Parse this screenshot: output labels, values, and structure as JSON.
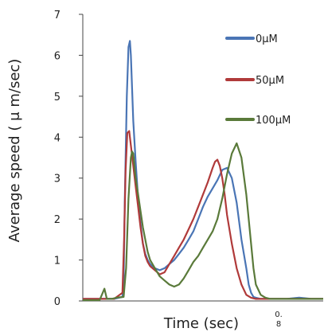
{
  "chart_data": {
    "type": "line",
    "title": "",
    "xlabel": "Time (sec)",
    "ylabel": "Average speed ( μ m/sec)",
    "ylim": [
      0,
      7
    ],
    "yticks": [
      "0",
      "1",
      "2",
      "3",
      "4",
      "5",
      "6",
      "7"
    ],
    "x_tick_note": [
      "0.",
      "8"
    ],
    "xlim": [
      0,
      1
    ],
    "grid": false,
    "legend_position": "top-right",
    "series": [
      {
        "name": "0μM",
        "color": "#4a75b5",
        "x": [
          0,
          0.07,
          0.1,
          0.13,
          0.165,
          0.17,
          0.175,
          0.183,
          0.19,
          0.196,
          0.2,
          0.205,
          0.21,
          0.22,
          0.23,
          0.24,
          0.25,
          0.26,
          0.27,
          0.28,
          0.3,
          0.32,
          0.34,
          0.36,
          0.38,
          0.4,
          0.42,
          0.44,
          0.46,
          0.48,
          0.5,
          0.52,
          0.54,
          0.56,
          0.58,
          0.6,
          0.62,
          0.64,
          0.66,
          0.68,
          0.69,
          0.7,
          0.71,
          0.72,
          0.74,
          0.76,
          0.8,
          0.85,
          0.9,
          0.95,
          1.0
        ],
        "y": [
          0.05,
          0.05,
          0.05,
          0.05,
          0.1,
          0.5,
          2.5,
          5.0,
          6.2,
          6.35,
          6.0,
          5.2,
          4.4,
          3.4,
          2.5,
          1.9,
          1.4,
          1.15,
          1.0,
          0.9,
          0.8,
          0.75,
          0.8,
          0.9,
          1.0,
          1.15,
          1.3,
          1.5,
          1.7,
          2.0,
          2.3,
          2.55,
          2.75,
          2.95,
          3.2,
          3.25,
          3.0,
          2.4,
          1.5,
          0.8,
          0.4,
          0.2,
          0.1,
          0.08,
          0.05,
          0.05,
          0.05,
          0.05,
          0.08,
          0.05,
          0.05
        ]
      },
      {
        "name": "50μM",
        "color": "#b03a3a",
        "x": [
          0,
          0.07,
          0.1,
          0.13,
          0.165,
          0.172,
          0.178,
          0.185,
          0.193,
          0.2,
          0.21,
          0.22,
          0.23,
          0.24,
          0.25,
          0.26,
          0.27,
          0.28,
          0.3,
          0.32,
          0.34,
          0.36,
          0.38,
          0.4,
          0.42,
          0.44,
          0.46,
          0.48,
          0.5,
          0.52,
          0.54,
          0.55,
          0.56,
          0.57,
          0.58,
          0.59,
          0.6,
          0.62,
          0.64,
          0.66,
          0.68,
          0.7,
          0.72,
          0.74,
          0.76,
          0.8,
          0.85,
          0.9,
          0.95,
          1.0
        ],
        "y": [
          0.05,
          0.05,
          0.05,
          0.05,
          0.2,
          1.5,
          3.2,
          4.1,
          4.15,
          3.8,
          3.3,
          2.8,
          2.3,
          1.8,
          1.4,
          1.1,
          0.95,
          0.85,
          0.75,
          0.65,
          0.7,
          0.9,
          1.1,
          1.3,
          1.5,
          1.75,
          2.0,
          2.3,
          2.6,
          2.9,
          3.25,
          3.4,
          3.45,
          3.3,
          3.0,
          2.6,
          2.1,
          1.4,
          0.8,
          0.4,
          0.15,
          0.08,
          0.05,
          0.05,
          0.05,
          0.05,
          0.05,
          0.05,
          0.05,
          0.05
        ]
      },
      {
        "name": "100μM",
        "color": "#5a7a3a",
        "x": [
          0,
          0.07,
          0.09,
          0.1,
          0.12,
          0.14,
          0.17,
          0.18,
          0.19,
          0.2,
          0.205,
          0.21,
          0.215,
          0.22,
          0.23,
          0.24,
          0.25,
          0.26,
          0.27,
          0.28,
          0.3,
          0.32,
          0.34,
          0.36,
          0.38,
          0.4,
          0.42,
          0.44,
          0.46,
          0.48,
          0.5,
          0.52,
          0.54,
          0.56,
          0.58,
          0.6,
          0.62,
          0.64,
          0.66,
          0.68,
          0.7,
          0.71,
          0.72,
          0.74,
          0.76,
          0.78,
          0.8,
          0.82,
          0.85,
          0.9,
          0.95,
          1.0
        ],
        "y": [
          0.02,
          0.02,
          0.3,
          0.05,
          0.05,
          0.08,
          0.1,
          0.8,
          2.5,
          3.5,
          3.65,
          3.6,
          3.3,
          3.0,
          2.6,
          2.2,
          1.8,
          1.5,
          1.2,
          1.0,
          0.8,
          0.6,
          0.5,
          0.4,
          0.35,
          0.4,
          0.55,
          0.75,
          0.95,
          1.1,
          1.3,
          1.5,
          1.7,
          2.0,
          2.5,
          3.1,
          3.6,
          3.85,
          3.5,
          2.6,
          1.4,
          0.8,
          0.4,
          0.15,
          0.08,
          0.05,
          0.05,
          0.05,
          0.05,
          0.05,
          0.05,
          0.05
        ]
      }
    ]
  }
}
